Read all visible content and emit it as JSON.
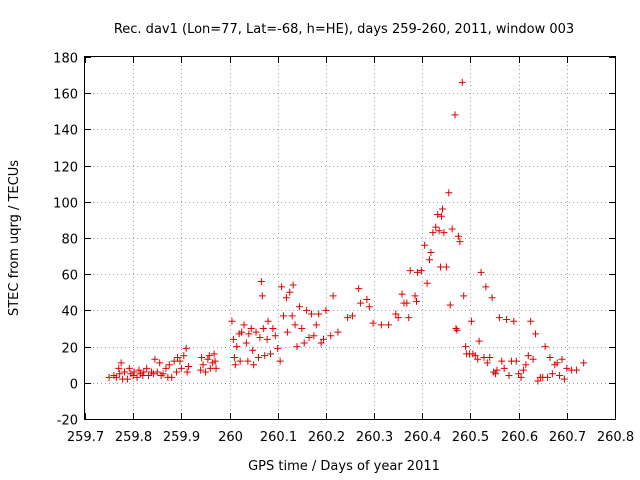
{
  "chart_data": {
    "type": "scatter",
    "title": "Rec. dav1 (Lon=77, Lat=-68, h=HE), days 259-260, 2011, window 003",
    "xlabel": "GPS time / Days of year 2011",
    "ylabel": "STEC from uqrg / TECUs",
    "xlim": [
      259.7,
      260.8
    ],
    "ylim": [
      -20,
      180
    ],
    "xticks": [
      259.7,
      259.8,
      259.9,
      260,
      260.1,
      260.2,
      260.3,
      260.4,
      260.5,
      260.6,
      260.7,
      260.8
    ],
    "xtick_labels": [
      "259.7",
      "259.8",
      "259.9",
      "260",
      "260.1",
      "260.2",
      "260.3",
      "260.4",
      "260.5",
      "260.6",
      "260.7",
      "260.8"
    ],
    "yticks": [
      -20,
      0,
      20,
      40,
      60,
      80,
      100,
      120,
      140,
      160,
      180
    ],
    "ytick_labels": [
      "-20",
      "0",
      "20",
      "40",
      "60",
      "80",
      "100",
      "120",
      "140",
      "160",
      "180"
    ],
    "grid": true,
    "marker": "plus",
    "marker_color": "#e00000",
    "series": [
      {
        "points": [
          [
            259.75,
            3
          ],
          [
            259.76,
            4
          ],
          [
            259.765,
            3
          ],
          [
            259.77,
            8
          ],
          [
            259.772,
            5
          ],
          [
            259.775,
            11
          ],
          [
            259.778,
            2
          ],
          [
            259.782,
            6
          ],
          [
            259.788,
            2
          ],
          [
            259.792,
            8
          ],
          [
            259.795,
            5
          ],
          [
            259.8,
            4
          ],
          [
            259.802,
            6
          ],
          [
            259.808,
            3
          ],
          [
            259.812,
            7
          ],
          [
            259.815,
            5
          ],
          [
            259.82,
            4
          ],
          [
            259.822,
            6
          ],
          [
            259.828,
            8
          ],
          [
            259.832,
            4
          ],
          [
            259.838,
            6
          ],
          [
            259.842,
            5
          ],
          [
            259.845,
            13
          ],
          [
            259.85,
            6
          ],
          [
            259.855,
            11
          ],
          [
            259.858,
            4
          ],
          [
            259.862,
            5
          ],
          [
            259.868,
            8
          ],
          [
            259.872,
            3
          ],
          [
            259.875,
            10
          ],
          [
            259.88,
            3
          ],
          [
            259.885,
            12
          ],
          [
            259.89,
            6
          ],
          [
            259.892,
            14
          ],
          [
            259.897,
            12
          ],
          [
            259.9,
            8
          ],
          [
            259.905,
            15
          ],
          [
            259.91,
            19
          ],
          [
            259.912,
            6
          ],
          [
            259.915,
            9
          ],
          [
            259.94,
            7
          ],
          [
            259.942,
            14
          ],
          [
            259.945,
            10
          ],
          [
            259.95,
            6
          ],
          [
            259.955,
            13
          ],
          [
            259.958,
            15
          ],
          [
            259.96,
            8
          ],
          [
            259.965,
            11
          ],
          [
            259.968,
            16
          ],
          [
            259.97,
            12
          ],
          [
            259.972,
            8
          ],
          [
            260.005,
            34
          ],
          [
            260.008,
            24
          ],
          [
            260.01,
            14
          ],
          [
            260.012,
            10
          ],
          [
            260.015,
            20
          ],
          [
            260.02,
            27
          ],
          [
            260.022,
            12
          ],
          [
            260.025,
            28
          ],
          [
            260.03,
            32
          ],
          [
            260.035,
            22
          ],
          [
            260.038,
            12
          ],
          [
            260.04,
            27
          ],
          [
            260.045,
            30
          ],
          [
            260.048,
            18
          ],
          [
            260.05,
            10
          ],
          [
            260.055,
            28
          ],
          [
            260.06,
            14
          ],
          [
            260.063,
            25
          ],
          [
            260.066,
            56
          ],
          [
            260.068,
            48
          ],
          [
            260.07,
            30
          ],
          [
            260.073,
            15
          ],
          [
            260.078,
            24
          ],
          [
            260.08,
            34
          ],
          [
            260.085,
            16
          ],
          [
            260.09,
            30
          ],
          [
            260.095,
            26
          ],
          [
            260.1,
            19
          ],
          [
            260.105,
            12
          ],
          [
            260.108,
            53
          ],
          [
            260.112,
            37
          ],
          [
            260.118,
            47
          ],
          [
            260.12,
            28
          ],
          [
            260.125,
            50
          ],
          [
            260.13,
            37
          ],
          [
            260.132,
            54
          ],
          [
            260.136,
            32
          ],
          [
            260.14,
            20
          ],
          [
            260.145,
            42
          ],
          [
            260.15,
            30
          ],
          [
            260.155,
            22
          ],
          [
            260.16,
            40
          ],
          [
            260.165,
            25
          ],
          [
            260.17,
            38
          ],
          [
            260.175,
            26
          ],
          [
            260.18,
            32
          ],
          [
            260.185,
            38
          ],
          [
            260.19,
            22
          ],
          [
            260.195,
            24
          ],
          [
            260.2,
            40
          ],
          [
            260.21,
            26
          ],
          [
            260.215,
            48
          ],
          [
            260.225,
            28
          ],
          [
            260.245,
            36
          ],
          [
            260.255,
            37
          ],
          [
            260.268,
            52
          ],
          [
            260.272,
            44
          ],
          [
            260.285,
            46
          ],
          [
            260.29,
            42
          ],
          [
            260.298,
            33
          ],
          [
            260.315,
            32
          ],
          [
            260.33,
            32
          ],
          [
            260.345,
            38
          ],
          [
            260.35,
            36
          ],
          [
            260.358,
            49
          ],
          [
            260.362,
            44
          ],
          [
            260.368,
            44
          ],
          [
            260.372,
            36
          ],
          [
            260.375,
            62
          ],
          [
            260.385,
            48
          ],
          [
            260.388,
            45
          ],
          [
            260.39,
            61
          ],
          [
            260.398,
            62
          ],
          [
            260.405,
            76
          ],
          [
            260.41,
            55
          ],
          [
            260.415,
            68
          ],
          [
            260.418,
            72
          ],
          [
            260.422,
            83
          ],
          [
            260.428,
            86
          ],
          [
            260.432,
            93
          ],
          [
            260.435,
            84
          ],
          [
            260.438,
            64
          ],
          [
            260.44,
            92
          ],
          [
            260.442,
            96
          ],
          [
            260.445,
            83
          ],
          [
            260.45,
            64
          ],
          [
            260.455,
            105
          ],
          [
            260.458,
            43
          ],
          [
            260.462,
            85
          ],
          [
            260.468,
            148
          ],
          [
            260.47,
            30
          ],
          [
            260.472,
            29
          ],
          [
            260.475,
            81
          ],
          [
            260.478,
            78
          ],
          [
            260.483,
            166
          ],
          [
            260.486,
            48
          ],
          [
            260.49,
            20
          ],
          [
            260.492,
            16
          ],
          [
            260.498,
            16
          ],
          [
            260.502,
            34
          ],
          [
            260.505,
            16
          ],
          [
            260.51,
            15
          ],
          [
            260.515,
            13
          ],
          [
            260.518,
            23
          ],
          [
            260.522,
            61
          ],
          [
            260.528,
            14
          ],
          [
            260.532,
            53
          ],
          [
            260.535,
            11
          ],
          [
            260.54,
            14
          ],
          [
            260.545,
            47
          ],
          [
            260.548,
            6
          ],
          [
            260.552,
            5
          ],
          [
            260.555,
            7
          ],
          [
            260.56,
            36
          ],
          [
            260.565,
            12
          ],
          [
            260.57,
            8
          ],
          [
            260.575,
            35
          ],
          [
            260.58,
            4
          ],
          [
            260.585,
            12
          ],
          [
            260.59,
            34
          ],
          [
            260.595,
            12
          ],
          [
            260.6,
            5
          ],
          [
            260.605,
            3
          ],
          [
            260.61,
            7
          ],
          [
            260.615,
            10
          ],
          [
            260.62,
            15
          ],
          [
            260.625,
            34
          ],
          [
            260.63,
            13
          ],
          [
            260.635,
            27
          ],
          [
            260.64,
            1
          ],
          [
            260.645,
            3
          ],
          [
            260.65,
            3
          ],
          [
            260.655,
            20
          ],
          [
            260.66,
            3
          ],
          [
            260.665,
            14
          ],
          [
            260.67,
            5
          ],
          [
            260.675,
            10
          ],
          [
            260.68,
            11
          ],
          [
            260.685,
            4
          ],
          [
            260.69,
            13
          ],
          [
            260.695,
            2
          ],
          [
            260.7,
            8
          ],
          [
            260.71,
            7
          ],
          [
            260.72,
            7
          ],
          [
            260.735,
            11
          ]
        ]
      }
    ]
  }
}
